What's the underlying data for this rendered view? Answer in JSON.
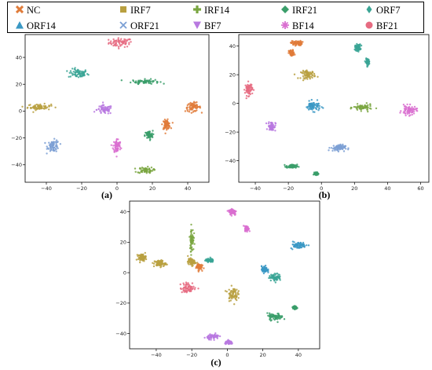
{
  "legend": [
    {
      "name": "NC",
      "color": "#e07b39",
      "marker": "x"
    },
    {
      "name": "IRF7",
      "color": "#b9a040",
      "marker": "square"
    },
    {
      "name": "IRF14",
      "color": "#7aa641",
      "marker": "plus"
    },
    {
      "name": "IRF21",
      "color": "#3a9e6a",
      "marker": "diamond"
    },
    {
      "name": "ORF7",
      "color": "#3aa595",
      "marker": "thin-diamond"
    },
    {
      "name": "ORF14",
      "color": "#3a98c4",
      "marker": "triangle"
    },
    {
      "name": "ORF21",
      "color": "#7b9fd4",
      "marker": "x-thin"
    },
    {
      "name": "BF7",
      "color": "#b879e0",
      "marker": "triangle-down"
    },
    {
      "name": "BF14",
      "color": "#d96fd0",
      "marker": "star"
    },
    {
      "name": "BF21",
      "color": "#e66b81",
      "marker": "circle"
    }
  ],
  "chart_data": [
    {
      "type": "scatter",
      "panel_label": "(a)",
      "xlim": [
        -52,
        52
      ],
      "ylim": [
        -53,
        57
      ],
      "xticks": [
        -40,
        -20,
        0,
        20,
        40
      ],
      "yticks": [
        -40,
        -20,
        0,
        20,
        40
      ],
      "clusters": [
        {
          "class": "BF21",
          "cx": 2,
          "cy": 51,
          "sx": 6,
          "sy": 3
        },
        {
          "class": "ORF7",
          "cx": -22,
          "cy": 28,
          "sx": 5,
          "sy": 3
        },
        {
          "class": "IRF21",
          "cx": 16,
          "cy": 22,
          "sx": 7,
          "sy": 1.5
        },
        {
          "class": "IRF7",
          "cx": -44,
          "cy": 3,
          "sx": 6,
          "sy": 2
        },
        {
          "class": "NC",
          "cx": 43,
          "cy": 3,
          "sx": 4,
          "sy": 3
        },
        {
          "class": "BF7",
          "cx": -7,
          "cy": 1,
          "sx": 4,
          "sy": 3
        },
        {
          "class": "ORF21",
          "cx": -36,
          "cy": -26,
          "sx": 3,
          "sy": 4
        },
        {
          "class": "NC",
          "cx": 28,
          "cy": -10,
          "sx": 2,
          "sy": 3
        },
        {
          "class": "IRF21",
          "cx": 18,
          "cy": -18,
          "sx": 2,
          "sy": 3
        },
        {
          "class": "BF14",
          "cx": 0,
          "cy": -26,
          "sx": 2,
          "sy": 5
        },
        {
          "class": "IRF14",
          "cx": 16,
          "cy": -44,
          "sx": 4,
          "sy": 2
        }
      ]
    },
    {
      "type": "scatter",
      "panel_label": "(b)",
      "xlim": [
        -50,
        65
      ],
      "ylim": [
        -55,
        48
      ],
      "xticks": [
        -40,
        -20,
        0,
        20,
        40,
        60
      ],
      "yticks": [
        -40,
        -20,
        0,
        20,
        40
      ],
      "clusters": [
        {
          "class": "NC",
          "cx": -15,
          "cy": 42,
          "sx": 3,
          "sy": 1.5
        },
        {
          "class": "NC",
          "cx": -18,
          "cy": 35,
          "sx": 1.5,
          "sy": 2
        },
        {
          "class": "ORF7",
          "cx": 22,
          "cy": 39,
          "sx": 1.5,
          "sy": 2
        },
        {
          "class": "ORF7",
          "cx": 28,
          "cy": 29,
          "sx": 1,
          "sy": 2
        },
        {
          "class": "IRF7",
          "cx": -8,
          "cy": 20,
          "sx": 4,
          "sy": 2.5
        },
        {
          "class": "BF21",
          "cx": -44,
          "cy": 10,
          "sx": 2,
          "sy": 4
        },
        {
          "class": "ORF14",
          "cx": -5,
          "cy": -2,
          "sx": 4,
          "sy": 3
        },
        {
          "class": "IRF14",
          "cx": 25,
          "cy": -3,
          "sx": 5,
          "sy": 2
        },
        {
          "class": "BF14",
          "cx": 53,
          "cy": -5,
          "sx": 4,
          "sy": 3
        },
        {
          "class": "BF7",
          "cx": -30,
          "cy": -16,
          "sx": 2,
          "sy": 3
        },
        {
          "class": "ORF21",
          "cx": 10,
          "cy": -31,
          "sx": 4,
          "sy": 2
        },
        {
          "class": "IRF21",
          "cx": -18,
          "cy": -44,
          "sx": 3,
          "sy": 1.2
        },
        {
          "class": "IRF21",
          "cx": -3,
          "cy": -49,
          "sx": 1,
          "sy": 0.8
        }
      ]
    },
    {
      "type": "scatter",
      "panel_label": "(c)",
      "xlim": [
        -55,
        52
      ],
      "ylim": [
        -50,
        47
      ],
      "xticks": [
        -40,
        -20,
        0,
        20,
        40
      ],
      "yticks": [
        -40,
        -20,
        0,
        20,
        40
      ],
      "clusters": [
        {
          "class": "BF14",
          "cx": 3,
          "cy": 40,
          "sx": 2,
          "sy": 2
        },
        {
          "class": "BF14",
          "cx": 11,
          "cy": 29,
          "sx": 1,
          "sy": 1.5
        },
        {
          "class": "IRF14",
          "cx": -20,
          "cy": 22,
          "sx": 1,
          "sy": 7
        },
        {
          "class": "ORF14",
          "cx": 40,
          "cy": 18,
          "sx": 4,
          "sy": 2
        },
        {
          "class": "IRF7",
          "cx": -48,
          "cy": 10,
          "sx": 2,
          "sy": 2
        },
        {
          "class": "IRF7",
          "cx": -38,
          "cy": 6,
          "sx": 3,
          "sy": 2
        },
        {
          "class": "IRF7",
          "cx": -20,
          "cy": 7,
          "sx": 2,
          "sy": 2
        },
        {
          "class": "NC",
          "cx": -16,
          "cy": 4,
          "sx": 1.5,
          "sy": 2
        },
        {
          "class": "ORF7",
          "cx": -10,
          "cy": 8,
          "sx": 2,
          "sy": 1
        },
        {
          "class": "ORF14",
          "cx": 21,
          "cy": 2,
          "sx": 1.5,
          "sy": 2
        },
        {
          "class": "ORF7",
          "cx": 27,
          "cy": -3,
          "sx": 3,
          "sy": 2
        },
        {
          "class": "BF21",
          "cx": -22,
          "cy": -10,
          "sx": 4,
          "sy": 3
        },
        {
          "class": "IRF7",
          "cx": 3,
          "cy": -14,
          "sx": 2.5,
          "sy": 4
        },
        {
          "class": "IRF21",
          "cx": 38,
          "cy": -23,
          "sx": 1,
          "sy": 1
        },
        {
          "class": "IRF21",
          "cx": 27,
          "cy": -29,
          "sx": 4,
          "sy": 2
        },
        {
          "class": "BF7",
          "cx": -8,
          "cy": -42,
          "sx": 3,
          "sy": 1.5
        },
        {
          "class": "BF7",
          "cx": 1,
          "cy": -46,
          "sx": 2,
          "sy": 1
        }
      ]
    }
  ]
}
